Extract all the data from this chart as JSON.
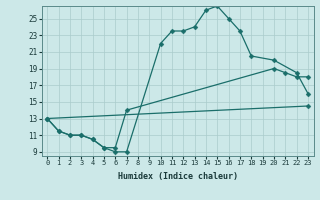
{
  "xlabel": "Humidex (Indice chaleur)",
  "xlim": [
    -0.5,
    23.5
  ],
  "ylim": [
    8.5,
    26.5
  ],
  "xticks": [
    0,
    1,
    2,
    3,
    4,
    5,
    6,
    7,
    8,
    9,
    10,
    11,
    12,
    13,
    14,
    15,
    16,
    17,
    18,
    19,
    20,
    21,
    22,
    23
  ],
  "yticks": [
    9,
    11,
    13,
    15,
    17,
    19,
    21,
    23,
    25
  ],
  "bg_color": "#cce8e8",
  "line_color": "#1a6e6a",
  "grid_color": "#aacccc",
  "lines": [
    {
      "x": [
        0,
        1,
        2,
        3,
        4,
        5,
        6,
        7,
        10,
        11,
        12,
        13,
        14,
        15,
        16,
        17,
        18,
        20,
        22,
        23
      ],
      "y": [
        13,
        11.5,
        11,
        11,
        10.5,
        9.5,
        9,
        9,
        22,
        23.5,
        23.5,
        24,
        26,
        26.5,
        25,
        23.5,
        20.5,
        20,
        18.5,
        16
      ]
    },
    {
      "x": [
        0,
        1,
        2,
        3,
        4,
        5,
        6,
        7,
        20,
        21,
        22,
        23
      ],
      "y": [
        13,
        11.5,
        11,
        11,
        10.5,
        9.5,
        9.5,
        14,
        19,
        18.5,
        18,
        18
      ]
    },
    {
      "x": [
        0,
        23
      ],
      "y": [
        13,
        14.5
      ]
    }
  ]
}
